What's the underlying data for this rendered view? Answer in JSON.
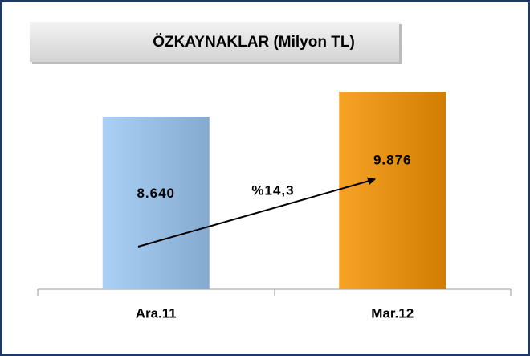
{
  "chart_data": {
    "type": "bar",
    "title": "ÖZKAYNAKLAR (Milyon TL)",
    "categories": [
      "Ara.11",
      "Mar.12"
    ],
    "values": [
      8640,
      9876
    ],
    "value_labels": [
      "8.640",
      "9.876"
    ],
    "colors": [
      "#9cc8f4",
      "#f59300"
    ],
    "annotation": "%14,3",
    "ylim": [
      0,
      12000
    ]
  }
}
